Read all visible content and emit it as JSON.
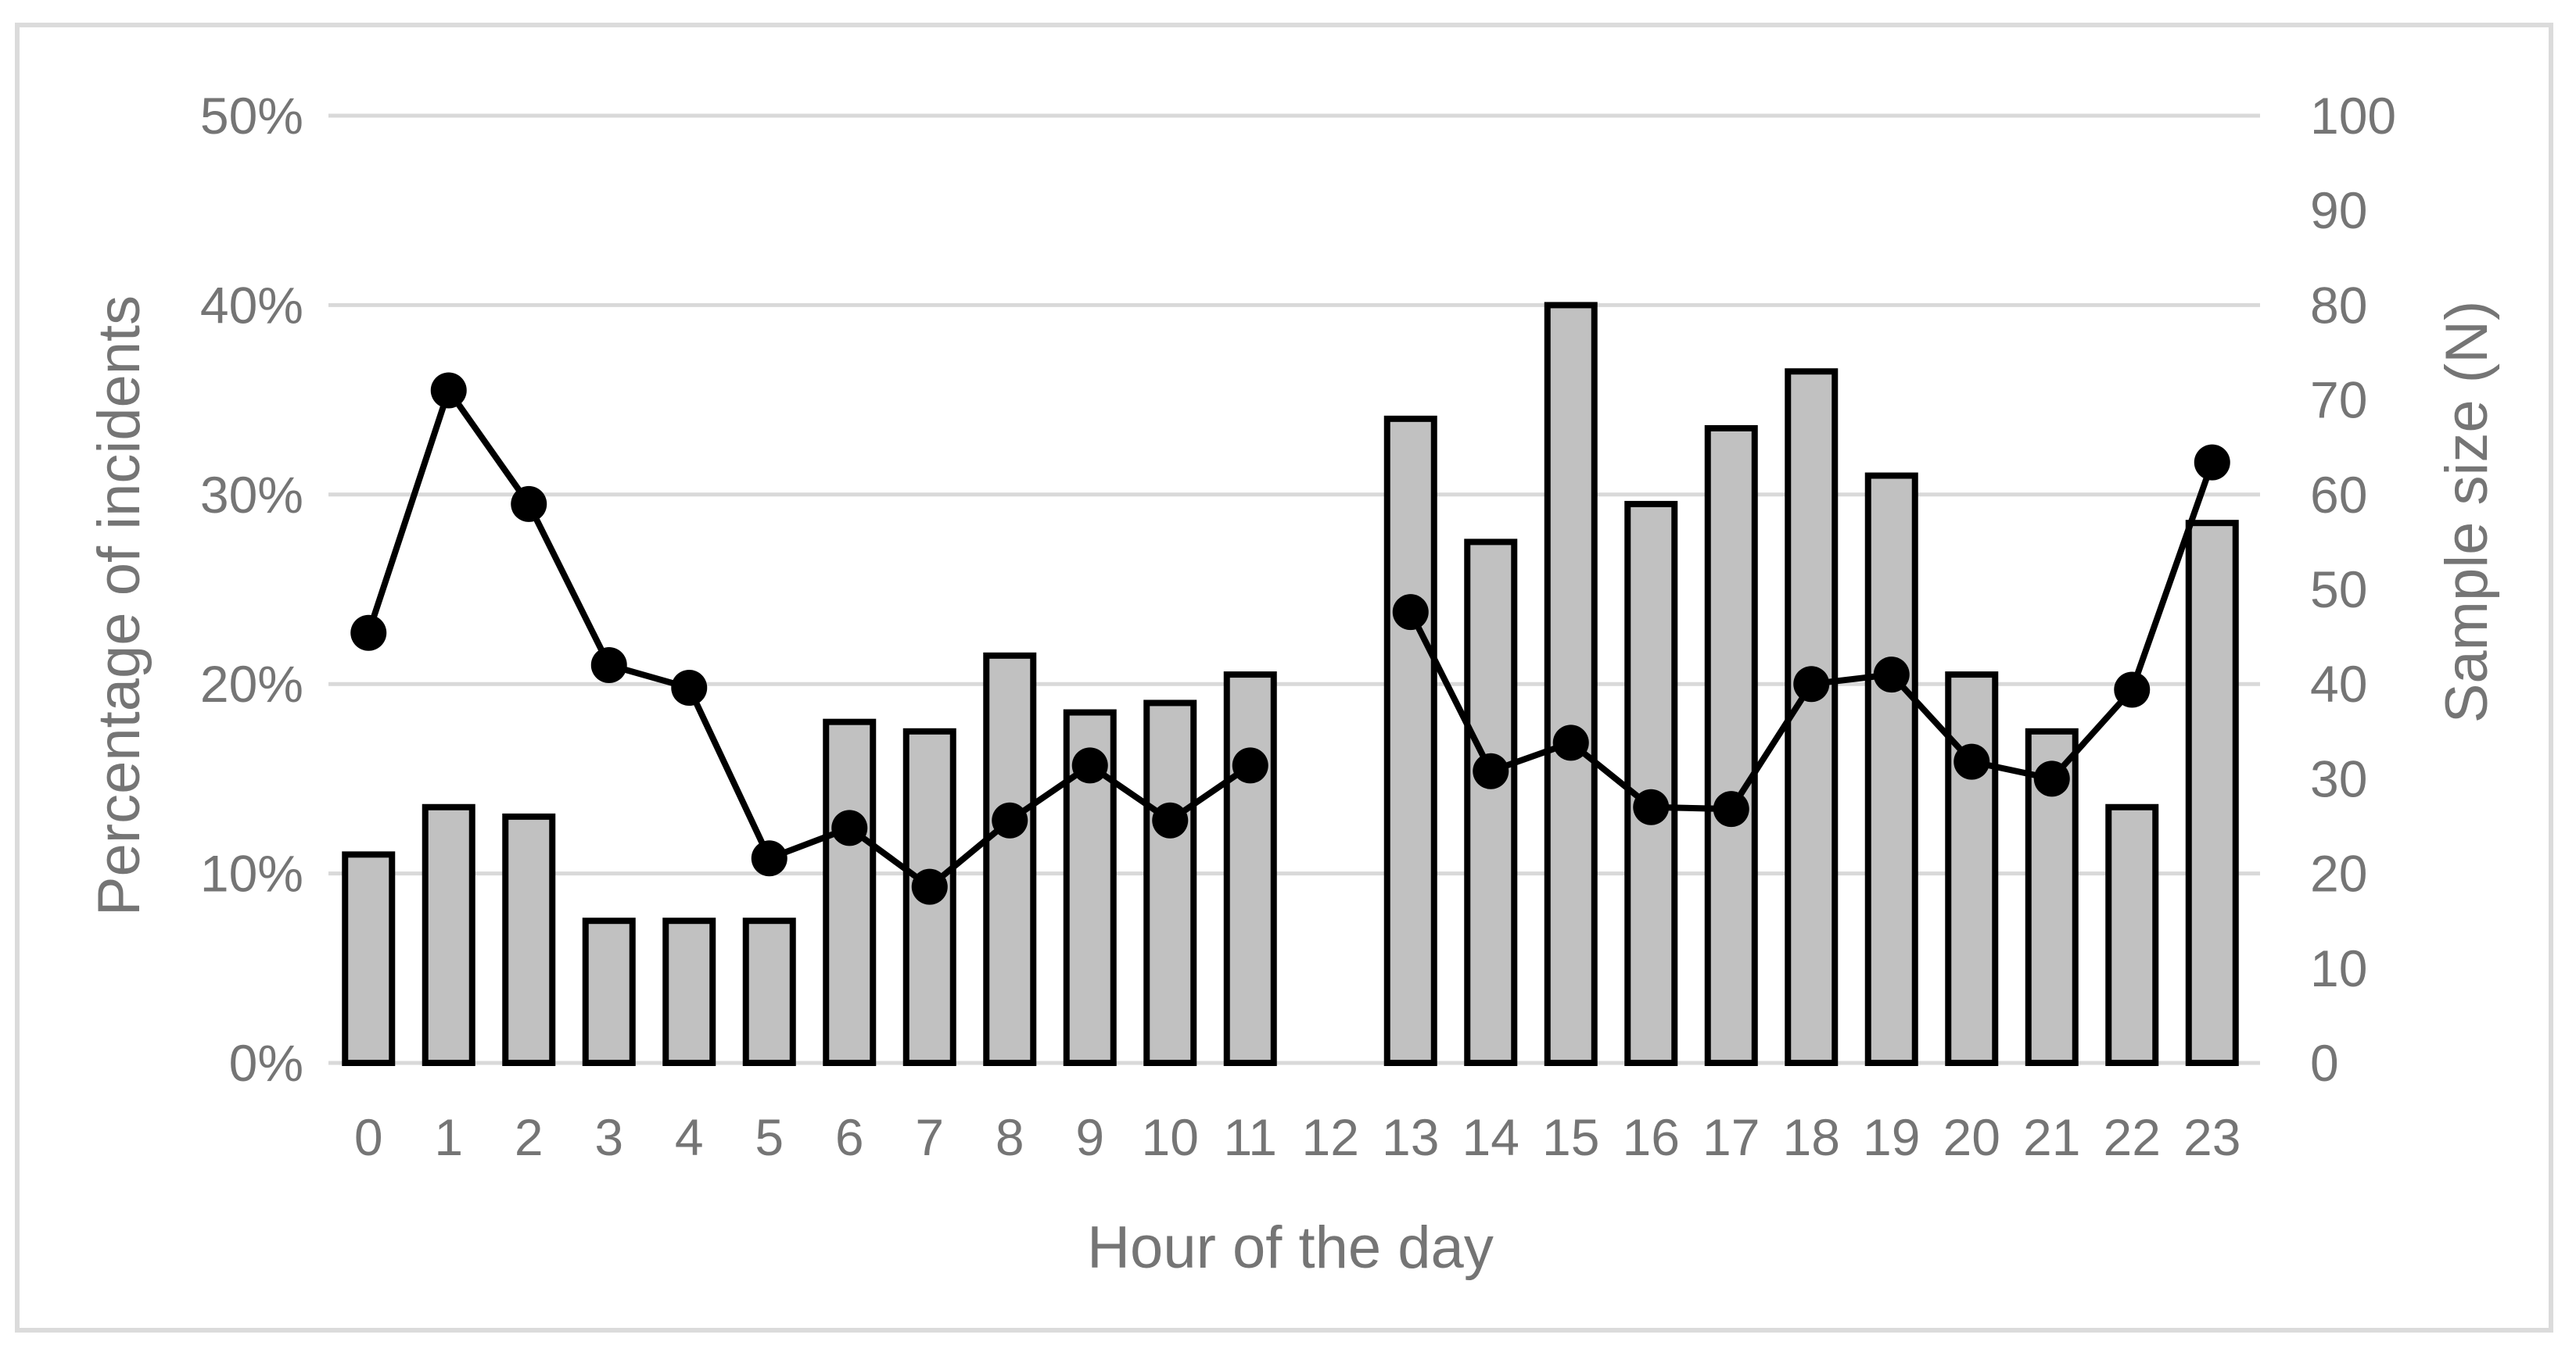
{
  "chart_data": {
    "type": "combo",
    "title": "",
    "xlabel": "Hour of the day",
    "ylabel_left": "Percentage of incidents",
    "ylabel_right": "Sample size (N)",
    "categories": [
      "0",
      "1",
      "2",
      "3",
      "4",
      "5",
      "6",
      "7",
      "8",
      "9",
      "10",
      "11",
      "12",
      "13",
      "14",
      "15",
      "16",
      "17",
      "18",
      "19",
      "20",
      "21",
      "22",
      "23"
    ],
    "series": [
      {
        "name": "Sample size (N)",
        "type": "bar",
        "axis": "right",
        "values": [
          22,
          27,
          26,
          15,
          15,
          15,
          36,
          35,
          43,
          37,
          38,
          41,
          null,
          68,
          55,
          80,
          59,
          67,
          73,
          62,
          41,
          35,
          27,
          57
        ]
      },
      {
        "name": "Percentage of incidents",
        "type": "line",
        "axis": "left",
        "values": [
          22.7,
          35.5,
          29.5,
          21.0,
          19.8,
          10.8,
          12.4,
          9.3,
          12.8,
          15.7,
          12.8,
          15.7,
          null,
          23.8,
          15.4,
          16.9,
          13.5,
          13.4,
          20.0,
          20.5,
          15.9,
          15.0,
          19.7,
          31.7
        ]
      }
    ],
    "y_left_ticks": [
      "0%",
      "10%",
      "20%",
      "30%",
      "40%",
      "50%"
    ],
    "y_right_ticks": [
      "0",
      "10",
      "20",
      "30",
      "40",
      "50",
      "60",
      "70",
      "80",
      "90",
      "100"
    ],
    "ylim_left": [
      0,
      50
    ],
    "ylim_right": [
      0,
      100
    ],
    "grid": true,
    "legend_position": "none"
  },
  "colors": {
    "bar_fill": "#c1c1c1",
    "bar_stroke": "#000000",
    "line_color": "#000000",
    "marker_color": "#000000",
    "gridline": "#d9d9d9",
    "chart_border": "#dbdbdb",
    "label_text": "#757575",
    "background": "#ffffff"
  }
}
